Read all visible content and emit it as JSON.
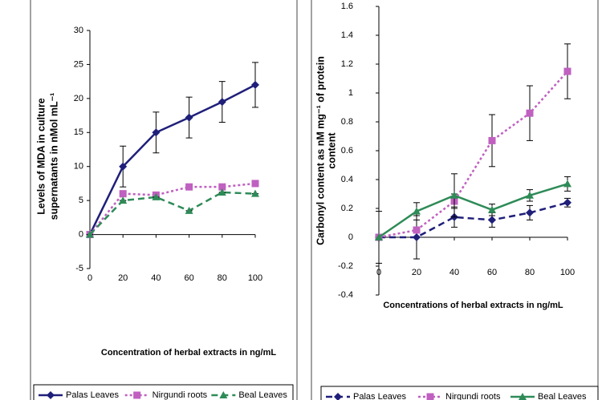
{
  "chart_data": [
    {
      "type": "line",
      "xlabel": "Concentration of herbal extracts in ng/mL",
      "ylabel": [
        "Levels of MDA in culture",
        "supernatants in nMol mL⁻¹"
      ],
      "x": [
        0,
        20,
        40,
        60,
        80,
        100
      ],
      "xlim": [
        0,
        100
      ],
      "xticks": [
        0,
        20,
        40,
        60,
        80,
        100
      ],
      "ylim": [
        -5,
        30
      ],
      "yticks": [
        -5,
        0,
        5,
        10,
        15,
        20,
        25,
        30
      ],
      "series": [
        {
          "name": "Palas Leaves",
          "color": "#1f1f7a",
          "dash": "solid",
          "marker": "diamond",
          "values": [
            0,
            10,
            15,
            17.2,
            19.5,
            22
          ],
          "errors": [
            0,
            3,
            3,
            3,
            3,
            3.3
          ]
        },
        {
          "name": "Nirgundi roots",
          "color": "#c060c0",
          "dash": "dotted",
          "marker": "square",
          "values": [
            0,
            6,
            5.8,
            7,
            7,
            7.5
          ],
          "errors": [
            0,
            0,
            0,
            0,
            0,
            0
          ]
        },
        {
          "name": "Beal Leaves",
          "color": "#2e8b57",
          "dash": "dashed",
          "marker": "triangle",
          "values": [
            0,
            5,
            5.5,
            3.5,
            6.2,
            6
          ],
          "errors": [
            0,
            0,
            0,
            0,
            0,
            0
          ]
        }
      ]
    },
    {
      "type": "line",
      "xlabel": "Concentrations of herbal extracts in ng/mL",
      "ylabel": [
        "Carbonyl content as nM mg⁻¹ of protein",
        "content"
      ],
      "x": [
        0,
        20,
        40,
        60,
        80,
        100
      ],
      "xlim": [
        0,
        100
      ],
      "xticks": [
        0,
        20,
        40,
        60,
        80,
        100
      ],
      "ylim": [
        -0.4,
        1.6
      ],
      "yticks": [
        -0.4,
        -0.2,
        0,
        0.2,
        0.4,
        0.6,
        0.8,
        1,
        1.2,
        1.4,
        1.6
      ],
      "series": [
        {
          "name": "Palas Leaves",
          "color": "#1f1f7a",
          "dash": "dashed",
          "marker": "diamond",
          "values": [
            0,
            0,
            0.14,
            0.12,
            0.17,
            0.24
          ],
          "errors": [
            0,
            0.15,
            0.07,
            0.05,
            0.05,
            0.03
          ]
        },
        {
          "name": "Nirgundi roots",
          "color": "#c060c0",
          "dash": "dotted",
          "marker": "square",
          "values": [
            0,
            0.05,
            0.25,
            0.67,
            0.86,
            1.15
          ],
          "errors": [
            0,
            0,
            0.05,
            0.18,
            0.19,
            0.19
          ]
        },
        {
          "name": "Beal Leaves",
          "color": "#2e8b57",
          "dash": "solid",
          "marker": "triangle",
          "values": [
            0,
            0.18,
            0.29,
            0.19,
            0.29,
            0.37
          ],
          "errors": [
            0.18,
            0.06,
            0.15,
            0.04,
            0.04,
            0.05
          ]
        }
      ]
    }
  ]
}
